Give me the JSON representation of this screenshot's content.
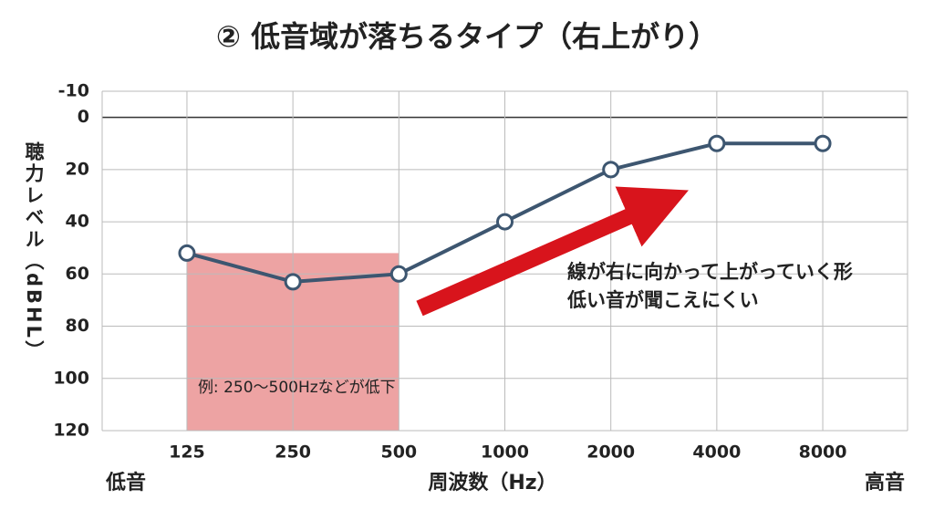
{
  "chart_data": {
    "type": "line",
    "title": "② 低音域が落ちるタイプ（右上がり）",
    "y_label": "聴力レベル（dBHL）",
    "x_label": "周波数（Hz）",
    "x_low_label": "低音",
    "x_high_label": "高音",
    "categories": [
      "125",
      "250",
      "500",
      "1000",
      "2000",
      "4000",
      "8000"
    ],
    "series": [
      {
        "name": "聴力",
        "color": "#3d5670",
        "values": [
          52,
          63,
          60,
          40,
          20,
          10,
          10
        ]
      }
    ],
    "ylim": [
      -10,
      120
    ],
    "yticks": [
      -10,
      0,
      20,
      40,
      60,
      80,
      100,
      120
    ],
    "y_reversed": true,
    "grid": true,
    "annotations": [
      "線が右に向かって上がっていく形",
      "低い音が聞こえにくい"
    ],
    "shade_label": "例: 250〜500Hzなどが低下"
  }
}
